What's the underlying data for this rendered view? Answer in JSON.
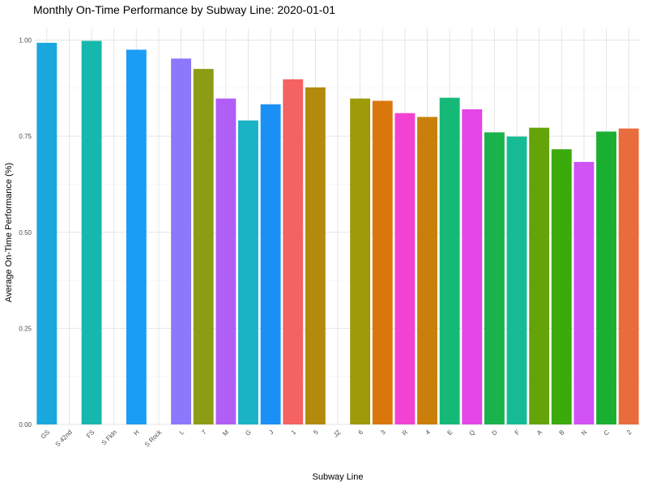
{
  "chart_data": {
    "type": "bar",
    "title": "Monthly On-Time Performance by Subway Line: 2020-01-01",
    "xlabel": "Subway Line",
    "ylabel": "Average On-Time Performance (%)",
    "ylim": [
      0,
      1.04
    ],
    "yticks": [
      0,
      0.25,
      0.5,
      0.75,
      1.0
    ],
    "ytick_labels": [
      "0.00",
      "0.25",
      "0.50",
      "0.75",
      "1.00"
    ],
    "grid": true,
    "legend": "none",
    "bars": [
      {
        "category": "GS",
        "value": 0.993,
        "color": "#1aa7de"
      },
      {
        "category": "S 42nd",
        "value": null,
        "color": "#1aa7de"
      },
      {
        "category": "FS",
        "value": 0.998,
        "color": "#16b8ad"
      },
      {
        "category": "S Fkln",
        "value": null,
        "color": "#16b8ad"
      },
      {
        "category": "H",
        "value": 0.975,
        "color": "#1a9df5"
      },
      {
        "category": "S Rock",
        "value": null,
        "color": "#1a9df5"
      },
      {
        "category": "L",
        "value": 0.952,
        "color": "#8b78fa"
      },
      {
        "category": "7",
        "value": 0.925,
        "color": "#8d9c14"
      },
      {
        "category": "M",
        "value": 0.848,
        "color": "#b15ef7"
      },
      {
        "category": "G",
        "value": 0.791,
        "color": "#1ab3c5"
      },
      {
        "category": "J",
        "value": 0.833,
        "color": "#1a90f5"
      },
      {
        "category": "1",
        "value": 0.898,
        "color": "#f46262"
      },
      {
        "category": "5",
        "value": 0.877,
        "color": "#b38b0c"
      },
      {
        "category": "JZ",
        "value": null,
        "color": "#b38b0c"
      },
      {
        "category": "6",
        "value": 0.848,
        "color": "#9e9a08"
      },
      {
        "category": "3",
        "value": 0.842,
        "color": "#d9770c"
      },
      {
        "category": "R",
        "value": 0.81,
        "color": "#f242d4"
      },
      {
        "category": "4",
        "value": 0.8,
        "color": "#c97f0a"
      },
      {
        "category": "E",
        "value": 0.85,
        "color": "#16b878"
      },
      {
        "category": "Q",
        "value": 0.82,
        "color": "#e546e7"
      },
      {
        "category": "D",
        "value": 0.76,
        "color": "#1ab24a"
      },
      {
        "category": "F",
        "value": 0.749,
        "color": "#16bb95"
      },
      {
        "category": "A",
        "value": 0.772,
        "color": "#64a40a"
      },
      {
        "category": "B",
        "value": 0.716,
        "color": "#3aaa0c"
      },
      {
        "category": "N",
        "value": 0.683,
        "color": "#d152f5"
      },
      {
        "category": "C",
        "value": 0.762,
        "color": "#1aaf30"
      },
      {
        "category": "2",
        "value": 0.77,
        "color": "#e96c3c"
      }
    ]
  }
}
